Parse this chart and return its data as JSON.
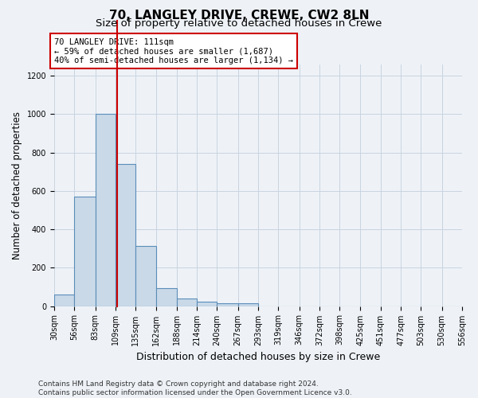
{
  "title_line1": "70, LANGLEY DRIVE, CREWE, CW2 8LN",
  "title_line2": "Size of property relative to detached houses in Crewe",
  "xlabel": "Distribution of detached houses by size in Crewe",
  "ylabel": "Number of detached properties",
  "bin_edges": [
    30,
    56,
    83,
    109,
    135,
    162,
    188,
    214,
    240,
    267,
    293,
    319,
    346,
    372,
    398,
    425,
    451,
    477,
    503,
    530,
    556
  ],
  "bar_heights": [
    60,
    570,
    1000,
    740,
    315,
    95,
    38,
    25,
    13,
    13,
    0,
    0,
    0,
    0,
    0,
    0,
    0,
    0,
    0,
    0
  ],
  "bar_color": "#c9d9e8",
  "bar_edge_color": "#5b8db8",
  "bar_edge_width": 0.8,
  "grid_color": "#c8d4e0",
  "background_color": "#eef2f7",
  "red_line_x": 111,
  "red_line_color": "#cc0000",
  "annotation_text": "70 LANGLEY DRIVE: 111sqm\n← 59% of detached houses are smaller (1,687)\n40% of semi-detached houses are larger (1,134) →",
  "annotation_box_color": "#ffffff",
  "annotation_box_edge": "#cc0000",
  "ylim": [
    0,
    1260
  ],
  "yticks": [
    0,
    200,
    400,
    600,
    800,
    1000,
    1200
  ],
  "footnote": "Contains HM Land Registry data © Crown copyright and database right 2024.\nContains public sector information licensed under the Open Government Licence v3.0.",
  "title_fontsize": 11,
  "subtitle_fontsize": 9.5,
  "xlabel_fontsize": 9,
  "ylabel_fontsize": 8.5,
  "tick_fontsize": 7,
  "annot_fontsize": 7.5,
  "footnote_fontsize": 6.5
}
